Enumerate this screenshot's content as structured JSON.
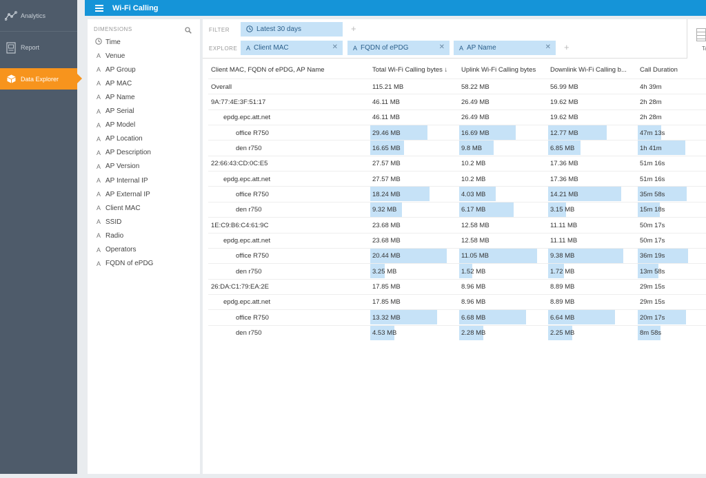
{
  "nav": {
    "items": [
      {
        "label": "Analytics",
        "icon": "analytics-icon"
      },
      {
        "label": "Report",
        "icon": "report-icon"
      },
      {
        "label": "Data Explorer",
        "icon": "cube-icon",
        "active": true
      }
    ]
  },
  "topbar": {
    "title": "Wi-Fi Calling"
  },
  "dimensions": {
    "heading": "DIMENSIONS",
    "items": [
      {
        "label": "Time",
        "icon": "clock"
      },
      {
        "label": "Venue",
        "icon": "A"
      },
      {
        "label": "AP Group",
        "icon": "A"
      },
      {
        "label": "AP MAC",
        "icon": "A"
      },
      {
        "label": "AP Name",
        "icon": "A"
      },
      {
        "label": "AP Serial",
        "icon": "A"
      },
      {
        "label": "AP Model",
        "icon": "A"
      },
      {
        "label": "AP Location",
        "icon": "A"
      },
      {
        "label": "AP Description",
        "icon": "A"
      },
      {
        "label": "AP Version",
        "icon": "A"
      },
      {
        "label": "AP Internal IP",
        "icon": "A"
      },
      {
        "label": "AP External IP",
        "icon": "A"
      },
      {
        "label": "Client MAC",
        "icon": "A"
      },
      {
        "label": "SSID",
        "icon": "A"
      },
      {
        "label": "Radio",
        "icon": "A"
      },
      {
        "label": "Operators",
        "icon": "A"
      },
      {
        "label": "FQDN of ePDG",
        "icon": "A"
      }
    ]
  },
  "filter": {
    "label": "FILTER",
    "pill": "Latest 30 days"
  },
  "explore": {
    "label": "EXPLORE",
    "pills": [
      "Client MAC",
      "FQDN of ePDG",
      "AP Name"
    ]
  },
  "viz_tab": {
    "label": "Ta"
  },
  "table": {
    "headers": [
      "Client MAC, FQDN of ePDG, AP Name",
      "Total Wi-Fi Calling bytes ↓",
      "Uplink Wi-Fi Calling bytes",
      "Downlink Wi-Fi Calling b...",
      "Call Duration"
    ],
    "rows": [
      {
        "label": "Overall",
        "level": 0,
        "total": "115.21 MB",
        "uplink": "58.22 MB",
        "downlink": "56.99 MB",
        "duration": "4h 39m",
        "bars": [
          0,
          0,
          0,
          0
        ]
      },
      {
        "label": "9A:77:4E:3F:51:17",
        "level": 0,
        "total": "46.11 MB",
        "uplink": "26.49 MB",
        "downlink": "19.62 MB",
        "duration": "2h 28m",
        "bars": [
          0,
          0,
          0,
          0
        ]
      },
      {
        "label": "epdg.epc.att.net",
        "level": 1,
        "total": "46.11 MB",
        "uplink": "26.49 MB",
        "downlink": "19.62 MB",
        "duration": "2h 28m",
        "bars": [
          0,
          0,
          0,
          0
        ]
      },
      {
        "label": "office R750",
        "level": 2,
        "total": "29.46 MB",
        "uplink": "16.69 MB",
        "downlink": "12.77 MB",
        "duration": "47m 13s",
        "bars": [
          0.639,
          0.63,
          0.651,
          0.319
        ]
      },
      {
        "label": "den r750",
        "level": 2,
        "total": "16.65 MB",
        "uplink": "9.8 MB",
        "downlink": "6.85 MB",
        "duration": "1h 41m",
        "bars": [
          0.361,
          0.37,
          0.349,
          0.681
        ]
      },
      {
        "label": "22:66:43:CD:0C:E5",
        "level": 0,
        "total": "27.57 MB",
        "uplink": "10.2 MB",
        "downlink": "17.36 MB",
        "duration": "51m 16s",
        "bars": [
          0,
          0,
          0,
          0
        ]
      },
      {
        "label": "epdg.epc.att.net",
        "level": 1,
        "total": "27.57 MB",
        "uplink": "10.2 MB",
        "downlink": "17.36 MB",
        "duration": "51m 16s",
        "bars": [
          0,
          0,
          0,
          0
        ]
      },
      {
        "label": "office R750",
        "level": 2,
        "total": "18.24 MB",
        "uplink": "4.03 MB",
        "downlink": "14.21 MB",
        "duration": "35m 58s",
        "bars": [
          0.662,
          0.395,
          0.819,
          0.702
        ]
      },
      {
        "label": "den r750",
        "level": 2,
        "total": "9.32 MB",
        "uplink": "6.17 MB",
        "downlink": "3.15 MB",
        "duration": "15m 18s",
        "bars": [
          0.338,
          0.605,
          0.181,
          0.298
        ]
      },
      {
        "label": "1E:C9:B6:C4:61:9C",
        "level": 0,
        "total": "23.68 MB",
        "uplink": "12.58 MB",
        "downlink": "11.11 MB",
        "duration": "50m 17s",
        "bars": [
          0,
          0,
          0,
          0
        ]
      },
      {
        "label": "epdg.epc.att.net",
        "level": 1,
        "total": "23.68 MB",
        "uplink": "12.58 MB",
        "downlink": "11.11 MB",
        "duration": "50m 17s",
        "bars": [
          0,
          0,
          0,
          0
        ]
      },
      {
        "label": "office R750",
        "level": 2,
        "total": "20.44 MB",
        "uplink": "11.05 MB",
        "downlink": "9.38 MB",
        "duration": "36m 19s",
        "bars": [
          0.863,
          0.879,
          0.845,
          0.722
        ]
      },
      {
        "label": "den r750",
        "level": 2,
        "total": "3.25 MB",
        "uplink": "1.52 MB",
        "downlink": "1.72 MB",
        "duration": "13m 58s",
        "bars": [
          0.137,
          0.121,
          0.155,
          0.278
        ]
      },
      {
        "label": "26:DA:C1:79:EA:2E",
        "level": 0,
        "total": "17.85 MB",
        "uplink": "8.96 MB",
        "downlink": "8.89 MB",
        "duration": "29m 15s",
        "bars": [
          0,
          0,
          0,
          0
        ]
      },
      {
        "label": "epdg.epc.att.net",
        "level": 1,
        "total": "17.85 MB",
        "uplink": "8.96 MB",
        "downlink": "8.89 MB",
        "duration": "29m 15s",
        "bars": [
          0,
          0,
          0,
          0
        ]
      },
      {
        "label": "office R750",
        "level": 2,
        "total": "13.32 MB",
        "uplink": "6.68 MB",
        "downlink": "6.64 MB",
        "duration": "20m 17s",
        "bars": [
          0.746,
          0.746,
          0.747,
          0.693
        ]
      },
      {
        "label": "den r750",
        "level": 2,
        "total": "4.53 MB",
        "uplink": "2.28 MB",
        "downlink": "2.25 MB",
        "duration": "8m 58s",
        "bars": [
          0.254,
          0.254,
          0.253,
          0.307
        ]
      }
    ]
  },
  "colors": {
    "accent": "#1594d8",
    "nav_bg": "#4e5b6a",
    "nav_active": "#f7941d",
    "bar": "#c6e2f7"
  }
}
